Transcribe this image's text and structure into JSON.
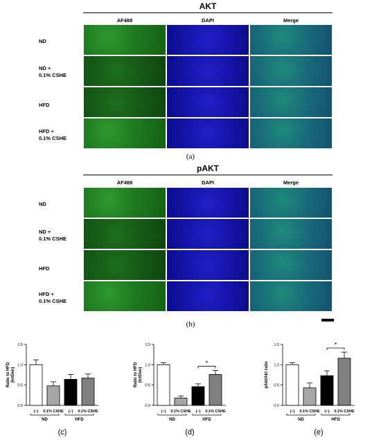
{
  "panel_a": {
    "title": "AKT",
    "columns": [
      "AF488",
      "DAPI",
      "Merge"
    ],
    "rows": [
      "ND",
      "ND +\n0.1% CSHE",
      "HFD",
      "HFD +\n0.1% CSHE"
    ],
    "label": "(a)"
  },
  "panel_b": {
    "title": "pAKT",
    "columns": [
      "AF488",
      "DAPI",
      "Merge"
    ],
    "rows": [
      "ND",
      "ND +\n0.1% CSHE",
      "HFD",
      "HFD +\n0.1% CSHE"
    ],
    "label": "(b)"
  },
  "chart_data": [
    {
      "type": "bar",
      "id": "c",
      "label": "(c)",
      "ylabel": "Ratio to HFD\n(IntDen)",
      "ylim": [
        0,
        1.5
      ],
      "yticks": [
        "0.0",
        "0.5",
        "1.0",
        "1.5"
      ],
      "categories": [
        "(−)",
        "0.1% CSHE",
        "(−)",
        "0.1% CSHE"
      ],
      "groups": [
        "ND",
        "HFD"
      ],
      "values": [
        1.0,
        0.48,
        0.64,
        0.67
      ],
      "errors": [
        0.12,
        0.1,
        0.12,
        0.1
      ],
      "bar_colors": [
        "#ffffff",
        "#a6a6a6",
        "#000000",
        "#7f7f7f"
      ],
      "significance": []
    },
    {
      "type": "bar",
      "id": "d",
      "label": "(d)",
      "ylabel": "Ratio to HFD\n(IntDen)",
      "ylim": [
        0,
        1.5
      ],
      "yticks": [
        "0.0",
        "0.5",
        "1.0",
        "1.5"
      ],
      "categories": [
        "(−)",
        "0.1% CSHE",
        "(−)",
        "0.1% CSHE"
      ],
      "groups": [
        "ND",
        "HFD"
      ],
      "values": [
        1.0,
        0.18,
        0.46,
        0.76
      ],
      "errors": [
        0.05,
        0.05,
        0.07,
        0.1
      ],
      "bar_colors": [
        "#ffffff",
        "#a6a6a6",
        "#000000",
        "#7f7f7f"
      ],
      "significance": [
        {
          "from": 2,
          "to": 3,
          "label": "*"
        }
      ]
    },
    {
      "type": "bar",
      "id": "e",
      "label": "(e)",
      "ylabel": "pAkt/Akt ratio",
      "ylim": [
        0,
        1.5
      ],
      "yticks": [
        "0.0",
        "0.5",
        "1.0",
        "1.5"
      ],
      "categories": [
        "(−)",
        "0.1% CSHE",
        "(−)",
        "0.1% CSHE"
      ],
      "groups": [
        "ND",
        "HFD"
      ],
      "values": [
        1.0,
        0.43,
        0.73,
        1.16
      ],
      "errors": [
        0.05,
        0.12,
        0.12,
        0.15
      ],
      "bar_colors": [
        "#ffffff",
        "#a6a6a6",
        "#000000",
        "#7f7f7f"
      ],
      "significance": [
        {
          "from": 2,
          "to": 3,
          "label": "*"
        }
      ]
    }
  ]
}
